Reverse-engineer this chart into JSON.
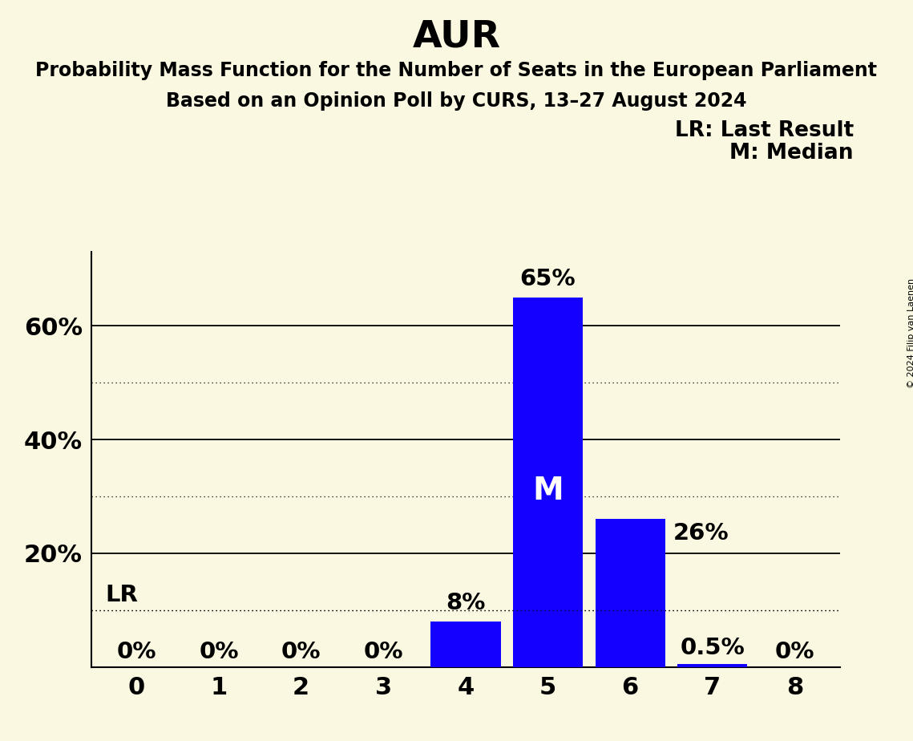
{
  "title": "AUR",
  "subtitle1": "Probability Mass Function for the Number of Seats in the European Parliament",
  "subtitle2": "Based on an Opinion Poll by CURS, 13–27 August 2024",
  "copyright": "© 2024 Filip van Laenen",
  "categories": [
    0,
    1,
    2,
    3,
    4,
    5,
    6,
    7,
    8
  ],
  "values": [
    0.0,
    0.0,
    0.0,
    0.0,
    0.08,
    0.65,
    0.26,
    0.005,
    0.0
  ],
  "bar_labels": [
    "0%",
    "0%",
    "0%",
    "0%",
    "8%",
    "65%",
    "26%",
    "0.5%",
    "0%"
  ],
  "bar_color": "#1400FF",
  "background_color": "#FAF8E0",
  "median_seat": 5,
  "median_label": "M",
  "lr_value": 0.1,
  "lr_label": "LR",
  "legend_lr": "LR: Last Result",
  "legend_m": "M: Median",
  "solid_yticks": [
    0.0,
    0.2,
    0.4,
    0.6
  ],
  "dotted_yticks": [
    0.1,
    0.3,
    0.5
  ],
  "shown_ytick_values": [
    0.2,
    0.4,
    0.6
  ],
  "shown_ytick_labels": [
    "20%",
    "40%",
    "60%"
  ],
  "ylim": [
    0,
    0.73
  ],
  "title_fontsize": 34,
  "subtitle_fontsize": 17,
  "tick_fontsize": 22,
  "bar_label_fontsize": 21,
  "legend_fontsize": 19,
  "m_fontsize": 28
}
